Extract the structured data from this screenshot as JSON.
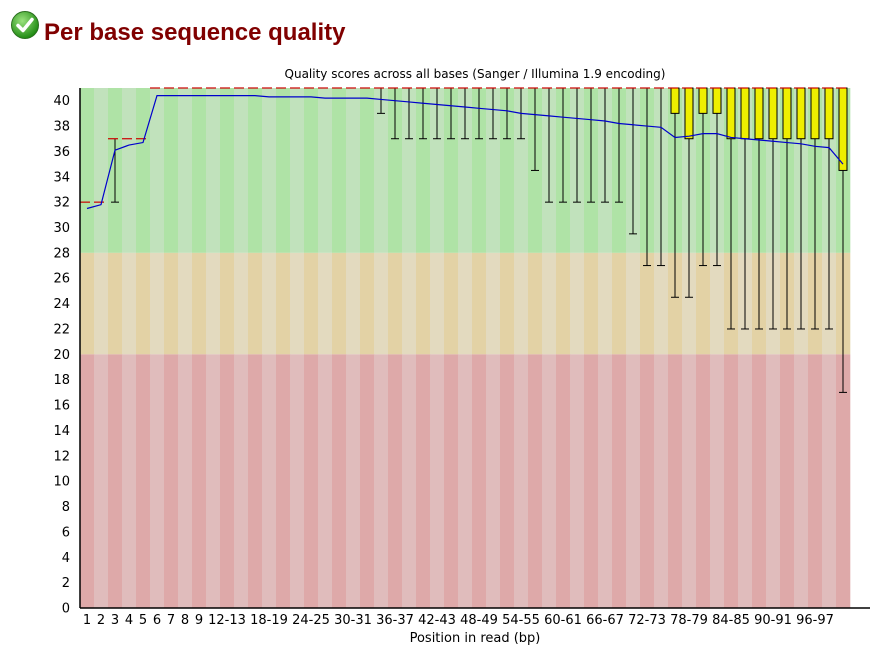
{
  "header": {
    "title": "Per base sequence quality",
    "status_icon": "pass-check-icon",
    "status_color": "#2e9e1e",
    "title_color": "#800000"
  },
  "chart_data": {
    "type": "boxplot",
    "title": "Quality scores across all bases (Sanger / Illumina 1.9 encoding)",
    "xlabel": "Position in read (bp)",
    "ylabel": "",
    "ylim": [
      0,
      41
    ],
    "yticks": [
      0,
      2,
      4,
      6,
      8,
      10,
      12,
      14,
      16,
      18,
      20,
      22,
      24,
      26,
      28,
      30,
      32,
      34,
      36,
      38,
      40
    ],
    "zones": [
      {
        "from": 28,
        "to": 41,
        "colors": [
          "#afe3a6",
          "#c1e2bc"
        ]
      },
      {
        "from": 20,
        "to": 28,
        "colors": [
          "#e3d2a5",
          "#e3dabf"
        ]
      },
      {
        "from": 0,
        "to": 20,
        "colors": [
          "#dea9a9",
          "#e0bcbc"
        ]
      }
    ],
    "colors": {
      "box": "#eeee00",
      "mean": "#0000cc",
      "median": "#cc0000",
      "whisker": "#000000"
    },
    "categories": [
      "1",
      "2",
      "3",
      "4",
      "5",
      "6",
      "7",
      "8",
      "9",
      "10-11",
      "12-13",
      "14-15",
      "16-17",
      "18-19",
      "20-21",
      "22-23",
      "24-25",
      "26-27",
      "28-29",
      "30-31",
      "32-33",
      "34-35",
      "36-37",
      "38-39",
      "40-41",
      "42-43",
      "44-45",
      "46-47",
      "48-49",
      "50-51",
      "52-53",
      "54-55",
      "56-57",
      "58-59",
      "60-61",
      "62-63",
      "64-65",
      "66-67",
      "68-69",
      "70-71",
      "72-73",
      "74-75",
      "76-77",
      "78-79",
      "80-81",
      "82-83",
      "84-85",
      "86-87",
      "88-89",
      "90-91",
      "92-93",
      "94-95",
      "96-97",
      "98-99",
      "100"
    ],
    "tick_labels": [
      "1",
      "2",
      "3",
      "4",
      "5",
      "6",
      "7",
      "8",
      "9",
      "12-13",
      "18-19",
      "24-25",
      "30-31",
      "36-37",
      "42-43",
      "48-49",
      "54-55",
      "60-61",
      "66-67",
      "72-73",
      "78-79",
      "84-85",
      "90-91",
      "96-97"
    ],
    "mean": [
      31.5,
      31.8,
      36.1,
      36.5,
      36.7,
      40.4,
      40.4,
      40.4,
      40.4,
      40.4,
      40.4,
      40.4,
      40.4,
      40.3,
      40.3,
      40.3,
      40.3,
      40.2,
      40.2,
      40.2,
      40.2,
      40.1,
      40.0,
      39.9,
      39.8,
      39.7,
      39.6,
      39.5,
      39.4,
      39.3,
      39.2,
      39.0,
      38.9,
      38.8,
      38.7,
      38.6,
      38.5,
      38.4,
      38.2,
      38.1,
      38.0,
      37.9,
      37.1,
      37.2,
      37.4,
      37.4,
      37.1,
      37.0,
      36.9,
      36.8,
      36.7,
      36.6,
      36.4,
      36.3,
      35.0
    ],
    "median": [
      32,
      32,
      37,
      37,
      37,
      41,
      41,
      41,
      41,
      41,
      41,
      41,
      41,
      41,
      41,
      41,
      41,
      41,
      41,
      41,
      41,
      41,
      41,
      41,
      41,
      41,
      41,
      41,
      41,
      41,
      41,
      41,
      41,
      41,
      41,
      41,
      41,
      41,
      41,
      41,
      41,
      41,
      41,
      41,
      41,
      41,
      41,
      41,
      41,
      41,
      41,
      41,
      41,
      41,
      41
    ],
    "q1": [
      32,
      32,
      37,
      37,
      37,
      41,
      41,
      41,
      41,
      41,
      41,
      41,
      41,
      41,
      41,
      41,
      41,
      41,
      41,
      41,
      41,
      41,
      41,
      41,
      41,
      41,
      41,
      41,
      41,
      41,
      41,
      41,
      41,
      41,
      41,
      41,
      41,
      41,
      41,
      41,
      41,
      41,
      39,
      37,
      39,
      39,
      37,
      37,
      37,
      37,
      37,
      37,
      37,
      37,
      34.5
    ],
    "q3": [
      32,
      32,
      37,
      37,
      37,
      41,
      41,
      41,
      41,
      41,
      41,
      41,
      41,
      41,
      41,
      41,
      41,
      41,
      41,
      41,
      41,
      41,
      41,
      41,
      41,
      41,
      41,
      41,
      41,
      41,
      41,
      41,
      41,
      41,
      41,
      41,
      41,
      41,
      41,
      41,
      41,
      41,
      41,
      41,
      41,
      41,
      41,
      41,
      41,
      41,
      41,
      41,
      41,
      41,
      41
    ],
    "whisker_low": [
      32,
      32,
      32,
      37,
      37,
      41,
      41,
      41,
      41,
      41,
      41,
      41,
      41,
      41,
      41,
      41,
      41,
      41,
      41,
      41,
      41,
      39,
      37,
      37,
      37,
      37,
      37,
      37,
      37,
      37,
      37,
      37,
      34.5,
      32,
      32,
      32,
      32,
      32,
      32,
      29.5,
      27,
      27,
      24.5,
      24.5,
      27,
      27,
      22,
      22,
      22,
      22,
      22,
      22,
      22,
      22,
      17
    ],
    "whisker_high": [
      32,
      32,
      37,
      37,
      37,
      41,
      41,
      41,
      41,
      41,
      41,
      41,
      41,
      41,
      41,
      41,
      41,
      41,
      41,
      41,
      41,
      41,
      41,
      41,
      41,
      41,
      41,
      41,
      41,
      41,
      41,
      41,
      41,
      41,
      41,
      41,
      41,
      41,
      41,
      41,
      41,
      41,
      41,
      41,
      41,
      41,
      41,
      41,
      41,
      41,
      41,
      41,
      41,
      41,
      41
    ]
  }
}
